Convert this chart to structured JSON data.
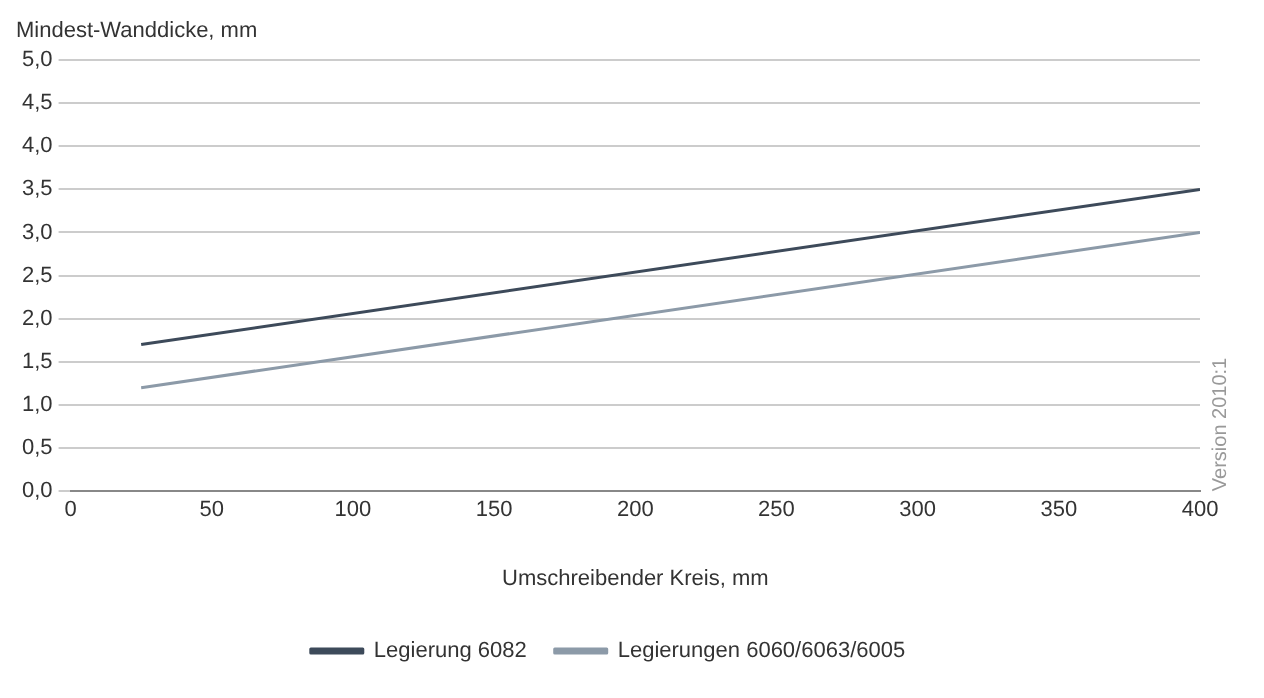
{
  "chart_data": {
    "type": "line",
    "ylabel": "Mindest-Wanddicke, mm",
    "xlabel": "Umschreibender Kreis, mm",
    "series": [
      {
        "name": "Legierung 6082",
        "color": "#3d4a5a",
        "values": [
          1.7,
          3.5
        ]
      },
      {
        "name": "Legierungen 6060/6063/6005",
        "color": "#8c9aa8",
        "values": [
          1.2,
          3.0
        ]
      }
    ],
    "x": [
      25,
      400
    ],
    "xlim": [
      0,
      400
    ],
    "xticks": [
      0,
      50,
      100,
      150,
      200,
      250,
      300,
      350,
      400
    ],
    "ylim": [
      0,
      5
    ],
    "yticks": [
      {
        "value": 0,
        "label": "0,0"
      },
      {
        "value": 0.5,
        "label": "0,5"
      },
      {
        "value": 1,
        "label": "1,0"
      },
      {
        "value": 1.5,
        "label": "1,5"
      },
      {
        "value": 2,
        "label": "2,0"
      },
      {
        "value": 2.5,
        "label": "2,5"
      },
      {
        "value": 3,
        "label": "3,0"
      },
      {
        "value": 3.5,
        "label": "3,5"
      },
      {
        "value": 4,
        "label": "4,0"
      },
      {
        "value": 4.5,
        "label": "4,5"
      },
      {
        "value": 5,
        "label": "5,0"
      }
    ],
    "grid": "y",
    "legend": "bottom",
    "marker": "none",
    "line_style": "solid",
    "annotations": [
      "Version 2010:1"
    ]
  }
}
